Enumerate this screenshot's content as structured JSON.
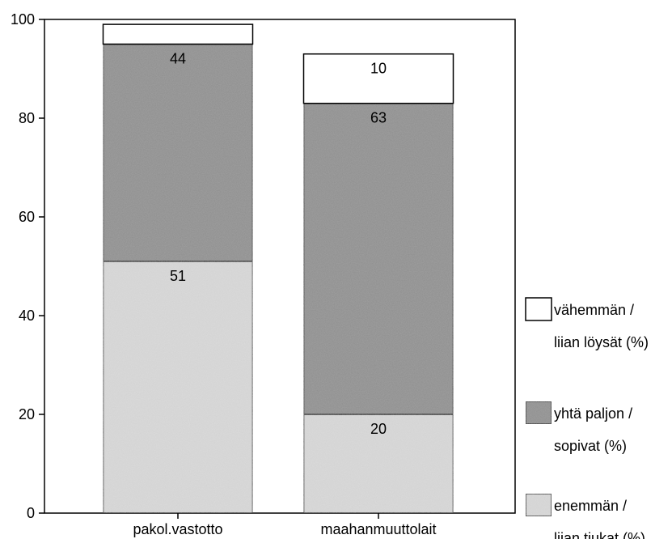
{
  "chart_data": {
    "type": "bar",
    "stacked": true,
    "categories": [
      "pakol.vastotto",
      "maahanmuuttolait"
    ],
    "ylim": [
      0,
      100
    ],
    "yticks": [
      0,
      20,
      40,
      60,
      80,
      100
    ],
    "series": [
      {
        "name": "enemmän / liian tiukat (%)",
        "legend_lines": [
          "enemmän /",
          "liian tiukat (%)"
        ],
        "values": [
          51,
          20
        ],
        "labels": [
          "51",
          "20"
        ],
        "color": "#dcdcdc"
      },
      {
        "name": "yhtä paljon / sopivat (%)",
        "legend_lines": [
          "yhtä paljon /",
          "sopivat (%)"
        ],
        "values": [
          44,
          63
        ],
        "labels": [
          "44",
          "63"
        ],
        "color": "#8e8e8e"
      },
      {
        "name": "vähemmän / liian löysät (%)",
        "legend_lines": [
          "vähemmän /",
          "liian löysät (%)"
        ],
        "values": [
          4,
          10
        ],
        "labels": [
          "",
          "10"
        ],
        "color": "#ffffff"
      }
    ],
    "legend_position": "right",
    "grid": false
  }
}
